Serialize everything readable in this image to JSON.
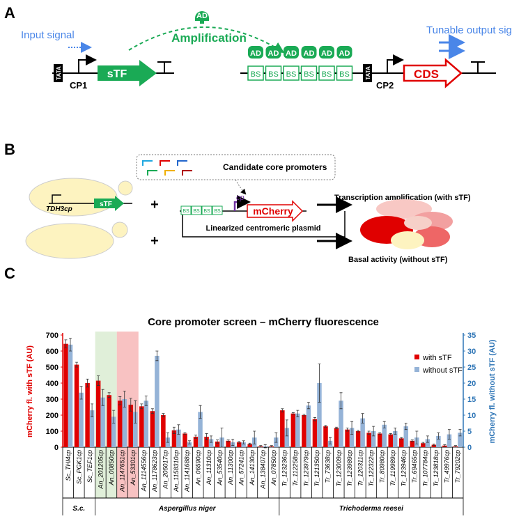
{
  "panel_a": {
    "letter": "A",
    "input": "Input signal",
    "ad": "AD",
    "amplification": "Amplification",
    "output": "Tunable output signal",
    "tata": "TATA",
    "cp1": "CP1",
    "stf": "sTF",
    "bs": "BS",
    "cp2": "CP2",
    "cds": "CDS"
  },
  "panel_b": {
    "letter": "B",
    "candidates": "Candidate core promoters",
    "tdh3": "TDH3cp",
    "stf": "sTF",
    "plus": "+",
    "bs": "BS",
    "cp": "cp",
    "mcherry": "mCherry",
    "plasmid": "Linearized centromeric plasmid",
    "with": "Transcription amplification (with sTF)",
    "without": "Basal activity (without sTF)"
  },
  "panel_c": {
    "letter": "C",
    "groups": [
      "S.c.",
      "Aspergillus niger",
      "Trichoderma reesei"
    ]
  },
  "chart_data": {
    "type": "bar",
    "title": "Core promoter screen – mCherry fluorescence",
    "y_label": "mCherry fl. with sTF (AU)",
    "y2_label": "mCherry fl. without sTF (AU)",
    "categories": [
      "Sc_THI4cp",
      "Sc_PGK1cp",
      "Sc_TEF1cp",
      "An_201205cp",
      "An_00850cp",
      "An_1147651cp",
      "An_53301cp",
      "An_1114556cp",
      "An_1178623cp",
      "An_205017cp",
      "An_1158310cp",
      "An_1141688cp",
      "An_06590cp",
      "An_11310cp",
      "An_53540cp",
      "An_11300cp",
      "An_57241cp",
      "An_14130cp",
      "An_138407cp",
      "An_07850cp",
      "Tr_123236cp",
      "Tr_112258cp",
      "Tr_123979cp",
      "Tr_121350cp",
      "Tr_73638cp",
      "Tr_123009cp",
      "Tr_123989cp",
      "Tr_120311cp",
      "Tr_122322cp",
      "Tr_80980cp",
      "Tr_119989cp",
      "Tr_123946cp",
      "Tr_69465cp",
      "Tr_107784cp",
      "Tr_123818cp",
      "Tr_49976cp",
      "Tr_79202cp"
    ],
    "series": [
      {
        "name": "with sTF",
        "color": "#e00000",
        "values": [
          645,
          515,
          400,
          415,
          325,
          290,
          265,
          255,
          225,
          200,
          105,
          85,
          65,
          65,
          35,
          40,
          30,
          20,
          5,
          5,
          230,
          210,
          200,
          175,
          130,
          120,
          110,
          100,
          90,
          85,
          80,
          55,
          40,
          25,
          15,
          10,
          5
        ],
        "errors": [
          25,
          15,
          25,
          30,
          15,
          25,
          40,
          15,
          15,
          10,
          20,
          5,
          10,
          20,
          10,
          5,
          5,
          5,
          5,
          5,
          10,
          5,
          5,
          10,
          5,
          5,
          10,
          5,
          10,
          5,
          5,
          5,
          5,
          5,
          5,
          5,
          5
        ]
      },
      {
        "name": "without sTF",
        "color": "#95b3d7",
        "axis": "y2",
        "values": [
          32,
          17,
          11.5,
          15.5,
          9.5,
          15,
          11,
          14.5,
          28.5,
          3,
          5.5,
          1.5,
          11,
          2.5,
          3,
          1.5,
          1.5,
          3,
          0.3,
          3,
          6,
          10.5,
          13,
          20,
          2,
          14.5,
          6,
          9,
          5,
          7,
          5,
          6.5,
          3,
          2.5,
          3.5,
          4,
          4.5
        ],
        "errors": [
          2,
          2,
          2,
          2.5,
          2,
          2.5,
          3.5,
          1.5,
          1.5,
          1.5,
          1.5,
          0.5,
          2,
          1,
          3,
          1,
          0.5,
          2,
          0.5,
          1.5,
          2.5,
          1,
          1,
          6,
          1,
          2.5,
          2,
          1.5,
          1.5,
          1,
          1,
          1,
          2,
          1,
          1,
          1.5,
          1
        ]
      }
    ],
    "ylim": [
      0,
      700
    ],
    "yticks": [
      0,
      100,
      200,
      300,
      400,
      500,
      600,
      700
    ],
    "y2lim": [
      0,
      35
    ],
    "y2ticks": [
      0,
      5,
      10,
      15,
      20,
      25,
      30,
      35
    ],
    "legend_position": "upper right"
  }
}
